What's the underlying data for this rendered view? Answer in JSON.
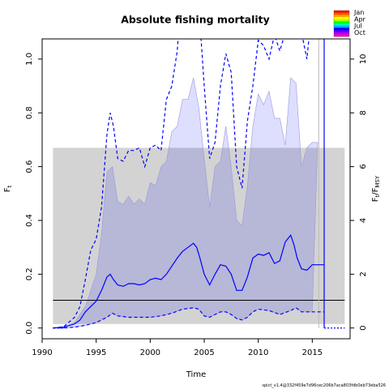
{
  "chart_data": {
    "type": "line",
    "title": "Absolute fishing mortality",
    "xlabel": "Time",
    "ylabel": "F",
    "ylabel_sub": "t",
    "y2label": "F",
    "y2label_sub": "t",
    "y2label_slash": "/F",
    "y2label_sub2": "MSY",
    "xlim": [
      1990,
      2018.5
    ],
    "ylim": [
      -0.04,
      1.075
    ],
    "y2_scale": 0.1,
    "x_ticks": [
      1990,
      1995,
      2000,
      2005,
      2010,
      2015
    ],
    "y_ticks": [
      0.0,
      0.2,
      0.4,
      0.6,
      0.8,
      1.0
    ],
    "y2_ticks": [
      0,
      2,
      4,
      6,
      8,
      10
    ],
    "grey_band": {
      "x": [
        1991,
        2018
      ],
      "y": [
        0.015,
        0.67
      ]
    },
    "fmsy_line": {
      "x": [
        1991,
        2018
      ],
      "y": 0.103
    },
    "vertical_marker_x": 2016.1,
    "grey_vertical_x": 2015.6,
    "series": [
      {
        "name": "",
        "role": "median",
        "x": [
          1991,
          1992,
          1993,
          1993.5,
          1994,
          1994.5,
          1995,
          1995.5,
          1996,
          1996.3,
          1996.6,
          1997,
          1997.5,
          1998,
          1998.5,
          1999,
          1999.5,
          2000,
          2000.5,
          2001,
          2001.5,
          2002,
          2002.5,
          2003,
          2003.5,
          2004,
          2004.3,
          2004.6,
          2005,
          2005.5,
          2006,
          2006.5,
          2007,
          2007.5,
          2008,
          2008.5,
          2009,
          2009.5,
          2010,
          2010.5,
          2011,
          2011.5,
          2012,
          2012.5,
          2013,
          2013.3,
          2013.6,
          2014,
          2014.5,
          2015,
          2015.5,
          2016.1
        ],
        "y": [
          0,
          0.003,
          0.015,
          0.03,
          0.06,
          0.08,
          0.1,
          0.14,
          0.19,
          0.2,
          0.18,
          0.16,
          0.155,
          0.165,
          0.165,
          0.16,
          0.165,
          0.18,
          0.185,
          0.18,
          0.2,
          0.23,
          0.26,
          0.285,
          0.3,
          0.315,
          0.3,
          0.26,
          0.2,
          0.16,
          0.2,
          0.235,
          0.23,
          0.2,
          0.14,
          0.14,
          0.19,
          0.26,
          0.275,
          0.27,
          0.28,
          0.24,
          0.25,
          0.32,
          0.345,
          0.31,
          0.26,
          0.22,
          0.215,
          0.235,
          0.235,
          0.235
        ]
      },
      {
        "name": "",
        "role": "lower",
        "x": [
          1991,
          1992,
          1993,
          1994,
          1995,
          1995.5,
          1996,
          1996.5,
          1997,
          1998,
          1999,
          2000,
          2001,
          2002,
          2003,
          2004,
          2004.5,
          2005,
          2005.5,
          2006,
          2006.5,
          2007,
          2007.5,
          2008,
          2008.5,
          2009,
          2009.5,
          2010,
          2011,
          2012,
          2013,
          2013.5,
          2014,
          2015,
          2016.1
        ],
        "y": [
          0,
          0,
          0.003,
          0.01,
          0.02,
          0.03,
          0.04,
          0.055,
          0.045,
          0.04,
          0.04,
          0.04,
          0.045,
          0.055,
          0.07,
          0.075,
          0.07,
          0.045,
          0.04,
          0.05,
          0.06,
          0.06,
          0.05,
          0.035,
          0.03,
          0.04,
          0.06,
          0.07,
          0.065,
          0.05,
          0.065,
          0.075,
          0.06,
          0.06,
          0.06
        ]
      },
      {
        "name": "",
        "role": "upper",
        "x": [
          1991,
          1992,
          1993,
          1993.5,
          1994,
          1994.5,
          1995,
          1995.5,
          1996,
          1996.3,
          1996.6,
          1997,
          1997.5,
          1998,
          1998.5,
          1999,
          1999.5,
          2000,
          2000.5,
          2001,
          2001.5,
          2002,
          2002.5,
          2003,
          2004,
          2004.5,
          2005,
          2005.5,
          2006,
          2006.5,
          2007,
          2007.5,
          2008,
          2008.5,
          2009,
          2009.5,
          2010,
          2010.5,
          2011,
          2011.5,
          2012,
          2012.5,
          2013,
          2013.5,
          2014,
          2014.5,
          2015,
          2015.5,
          2016.1
        ],
        "y": [
          0,
          0.005,
          0.04,
          0.08,
          0.18,
          0.29,
          0.33,
          0.45,
          0.72,
          0.8,
          0.75,
          0.63,
          0.62,
          0.66,
          0.66,
          0.67,
          0.6,
          0.67,
          0.68,
          0.66,
          0.85,
          0.9,
          1.03,
          1.3,
          1.4,
          1.2,
          0.9,
          0.63,
          0.69,
          0.9,
          1.02,
          0.95,
          0.6,
          0.52,
          0.77,
          0.9,
          1.07,
          1.05,
          1.0,
          1.09,
          1.03,
          1.1,
          1.25,
          1.2,
          1.1,
          1.0,
          1.2,
          1.25,
          1.25
        ]
      },
      {
        "name": "",
        "role": "band_upper",
        "x": [
          1991,
          1992,
          1993,
          1994,
          1995,
          1995.5,
          1996,
          1996.5,
          1997,
          1997.5,
          1998,
          1998.5,
          1999,
          1999.5,
          2000,
          2000.5,
          2001,
          2001.5,
          2002,
          2002.5,
          2003,
          2003.5,
          2004,
          2004.5,
          2005,
          2005.5,
          2006,
          2006.5,
          2007,
          2007.5,
          2008,
          2008.5,
          2009,
          2009.5,
          2010,
          2010.5,
          2011,
          2011.5,
          2012,
          2012.5,
          2013,
          2013.5,
          2014,
          2014.5,
          2015,
          2015.5
        ],
        "y": [
          0,
          0.005,
          0.02,
          0.08,
          0.2,
          0.35,
          0.58,
          0.6,
          0.47,
          0.46,
          0.49,
          0.46,
          0.48,
          0.46,
          0.54,
          0.53,
          0.6,
          0.62,
          0.73,
          0.75,
          0.85,
          0.85,
          0.93,
          0.82,
          0.63,
          0.45,
          0.6,
          0.62,
          0.75,
          0.6,
          0.4,
          0.38,
          0.53,
          0.75,
          0.87,
          0.83,
          0.88,
          0.78,
          0.78,
          0.68,
          0.93,
          0.91,
          0.6,
          0.67,
          0.69,
          0.69
        ]
      }
    ]
  },
  "legend": {
    "months": [
      "Jan",
      "Apr",
      "Jul",
      "Oct"
    ],
    "colors": [
      "#ff0000",
      "#ff5500",
      "#ffaa00",
      "#ffff00",
      "#aaff00",
      "#00ff00",
      "#00ffaa",
      "#00aaff",
      "#0000ff",
      "#5500ff",
      "#aa00ff",
      "#ff00aa"
    ]
  },
  "colors": {
    "line": "#0000ff",
    "band": "#ccccff",
    "grey": "#d3d3d3",
    "fmsy": "#000000"
  },
  "footer": "spict_v1.4@332f459e7d96cec206b7aca803fdb0eb73eba526"
}
